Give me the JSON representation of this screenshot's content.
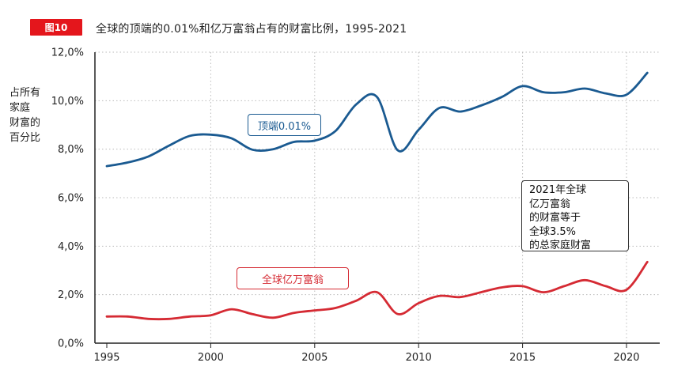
{
  "figure_badge": "图10",
  "title": "全球的顶端的0.01%和亿万富翁占有的财富比例，1995-2021",
  "ylabel_lines": [
    "占所有",
    "家庭",
    "财富的",
    "百分比"
  ],
  "annotation_lines": [
    "2021年全球",
    "亿万富翁",
    "的财富等于",
    "全球3.5%",
    "的总家庭财富"
  ],
  "series_labels": {
    "top": "顶端0.01%",
    "billionaires": "全球亿万富翁"
  },
  "colors": {
    "top": "#1a5a91",
    "billionaires": "#d52a33",
    "badge": "#e4161c",
    "grid": "#bbbbbb"
  },
  "chart_data": {
    "type": "line",
    "title": "全球的顶端的0.01%和亿万富翁占有的财富比例，1995-2021",
    "xlabel": "",
    "ylabel": "占所有家庭财富的百分比",
    "xlim": [
      1995,
      2021.5
    ],
    "ylim": [
      0,
      12
    ],
    "x_ticks": [
      1995,
      2000,
      2005,
      2010,
      2015,
      2020
    ],
    "x_tick_labels": [
      "1995",
      "2000",
      "2005",
      "2010",
      "2015",
      "2020"
    ],
    "y_ticks": [
      0,
      2,
      4,
      6,
      8,
      10,
      12
    ],
    "y_tick_labels": [
      "0,0%",
      "2,0%",
      "4,0%",
      "6,0%",
      "8,0%",
      "10,0%",
      "12,0%"
    ],
    "grid": "dotted",
    "series": [
      {
        "name": "顶端0.01%",
        "x": [
          1995,
          1996,
          1997,
          1998,
          1999,
          2000,
          2001,
          2002,
          2003,
          2004,
          2005,
          2006,
          2007,
          2008,
          2009,
          2010,
          2011,
          2012,
          2013,
          2014,
          2015,
          2016,
          2017,
          2018,
          2019,
          2020,
          2021
        ],
        "values": [
          7.3,
          7.45,
          7.7,
          8.15,
          8.55,
          8.6,
          8.45,
          7.98,
          8.0,
          8.3,
          8.35,
          8.75,
          9.85,
          10.15,
          7.95,
          8.8,
          9.7,
          9.55,
          9.8,
          10.15,
          10.6,
          10.35,
          10.35,
          10.5,
          10.3,
          10.25,
          11.15
        ]
      },
      {
        "name": "全球亿万富翁",
        "x": [
          1995,
          1996,
          1997,
          1998,
          1999,
          2000,
          2001,
          2002,
          2003,
          2004,
          2005,
          2006,
          2007,
          2008,
          2009,
          2010,
          2011,
          2012,
          2013,
          2014,
          2015,
          2016,
          2017,
          2018,
          2019,
          2020,
          2021
        ],
        "values": [
          1.1,
          1.1,
          1.0,
          1.0,
          1.1,
          1.15,
          1.4,
          1.2,
          1.05,
          1.25,
          1.35,
          1.45,
          1.75,
          2.1,
          1.2,
          1.65,
          1.95,
          1.9,
          2.1,
          2.3,
          2.35,
          2.1,
          2.35,
          2.6,
          2.35,
          2.2,
          3.35
        ]
      }
    ]
  }
}
